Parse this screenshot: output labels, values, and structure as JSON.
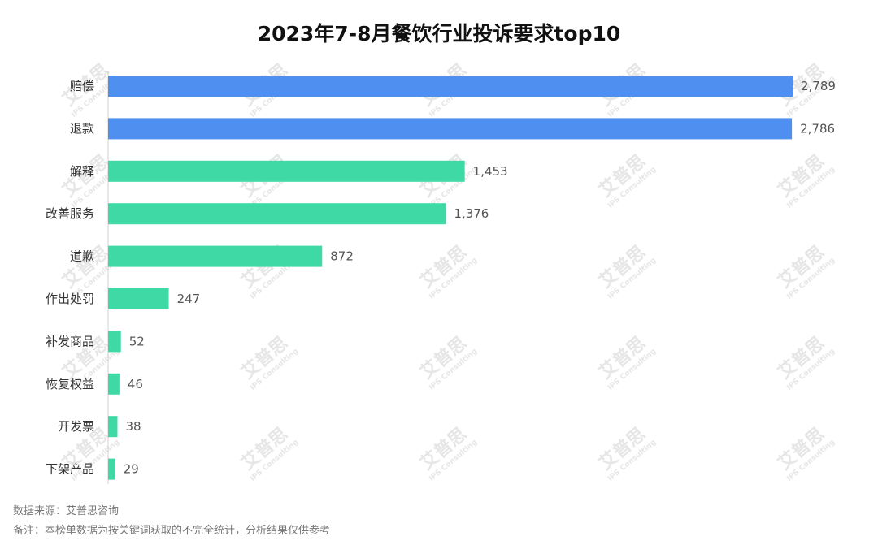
{
  "chart_data": {
    "type": "bar",
    "orientation": "horizontal",
    "title": "2023年7-8月餐饮行业投诉要求top10",
    "categories": [
      "赔偿",
      "退款",
      "解释",
      "改善服务",
      "道歉",
      "作出处罚",
      "补发商品",
      "恢复权益",
      "开发票",
      "下架产品"
    ],
    "values": [
      2789,
      2786,
      1453,
      1376,
      872,
      247,
      52,
      46,
      38,
      29
    ],
    "value_labels": [
      "2,789",
      "2,786",
      "1,453",
      "1,376",
      "872",
      "247",
      "52",
      "46",
      "38",
      "29"
    ],
    "xlim": [
      0,
      2789
    ],
    "highlight_top": 2,
    "colors": {
      "highlight": "#4e8ff0",
      "normal": "#3fd9a6"
    },
    "grid": false,
    "legend": "none"
  },
  "footer": {
    "source": "数据来源：艾普思咨询",
    "note": "备注：本榜单数据为按关键词获取的不完全统计，分析结果仅供参考"
  },
  "watermark": {
    "text": "艾普思",
    "subtext": "IPS Consulting"
  }
}
